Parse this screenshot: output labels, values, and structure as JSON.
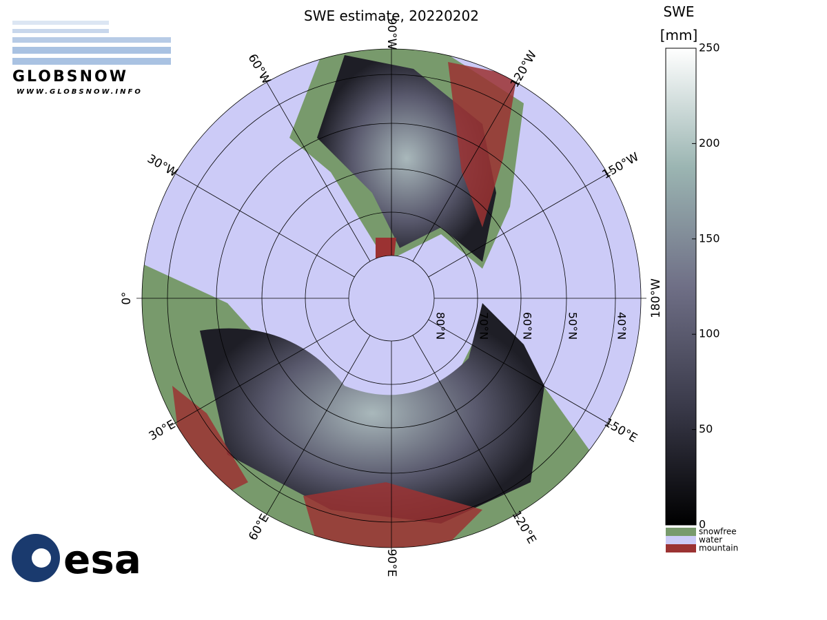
{
  "title": "SWE estimate, 20220202",
  "colorbar": {
    "title": "SWE",
    "unit": "[mm]",
    "lim": [
      0,
      250
    ],
    "ticks": [
      0,
      50,
      100,
      150,
      200,
      250
    ]
  },
  "legend": [
    {
      "name": "snowfree",
      "color": "#789a6c"
    },
    {
      "name": "water",
      "color": "#cccbf7"
    },
    {
      "name": "mountain",
      "color": "#9b3232"
    }
  ],
  "longitude_labels": [
    "0°",
    "30°E",
    "60°E",
    "90°E",
    "120°E",
    "150°E",
    "180°W",
    "150°W",
    "120°W",
    "90°W",
    "60°W",
    "30°W"
  ],
  "latitude_labels": [
    "80°N",
    "70°N",
    "60°N",
    "50°N",
    "40°N"
  ],
  "logos": {
    "globsnow": "GLOBSNOW",
    "url": "WWW.GLOBSNOW.INFO",
    "esa": "esa"
  }
}
